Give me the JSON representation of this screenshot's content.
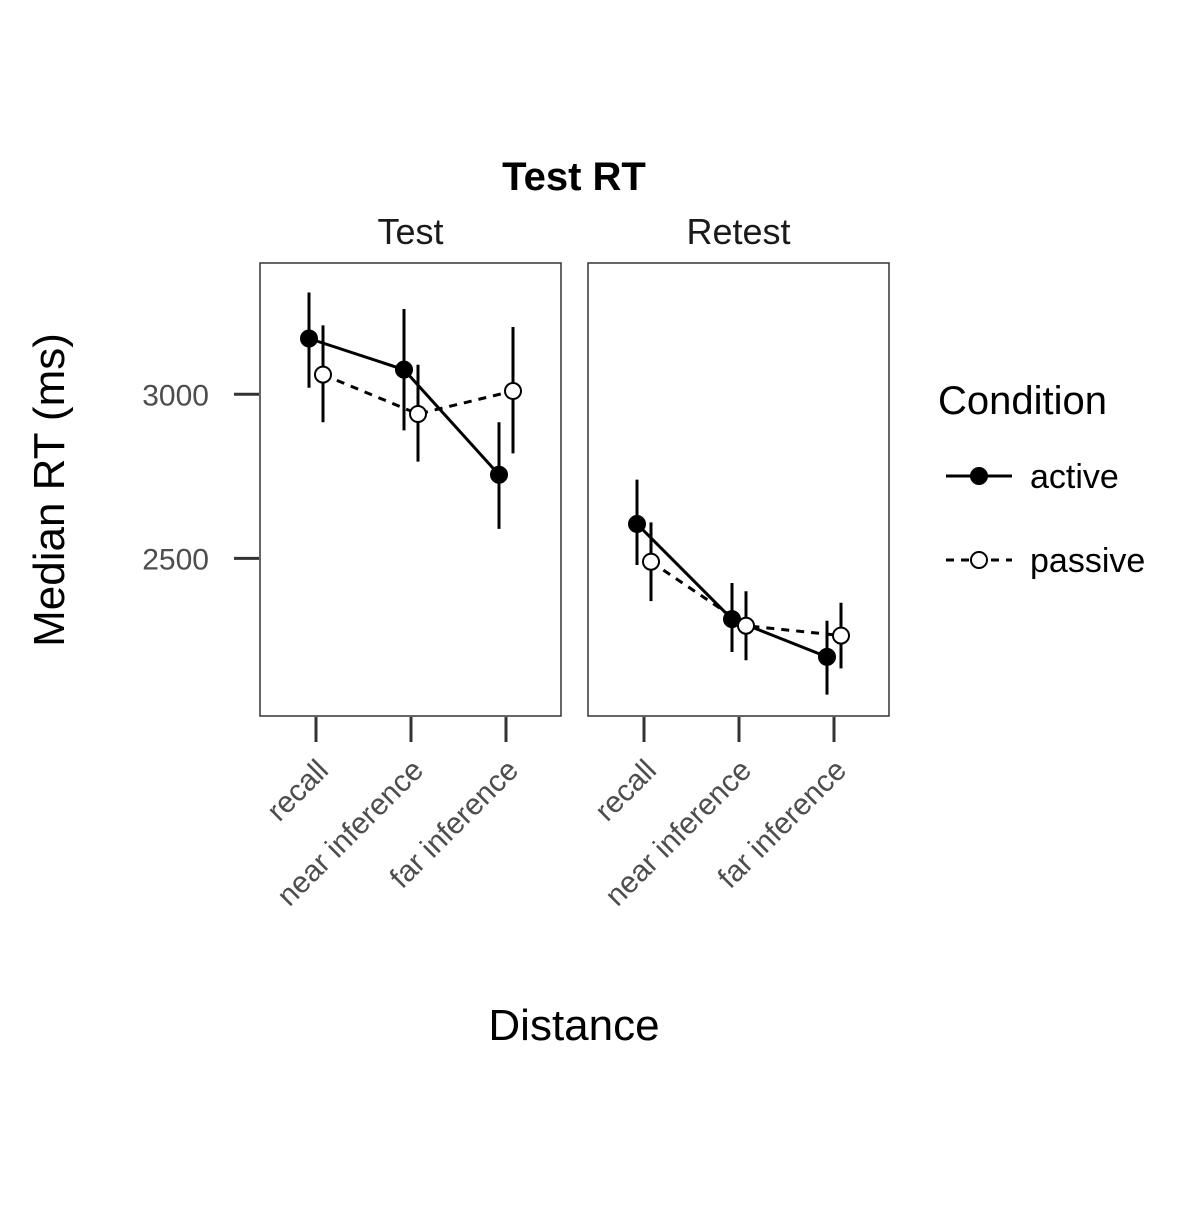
{
  "chart_data": {
    "type": "line",
    "title": "Test RT",
    "xlabel": "Distance",
    "ylabel": "Median RT (ms)",
    "categories": [
      "recall",
      "near inference",
      "far inference"
    ],
    "y_ticks": [
      2500,
      3000
    ],
    "ylim": [
      2020,
      3400
    ],
    "grid": false,
    "legend": {
      "title": "Condition",
      "position": "right",
      "entries": [
        {
          "name": "active",
          "marker": "filled-circle",
          "line": "solid"
        },
        {
          "name": "passive",
          "marker": "open-circle",
          "line": "dashed"
        }
      ]
    },
    "facets": [
      {
        "label": "Test",
        "series": [
          {
            "name": "active",
            "values": [
              3170,
              3075,
              2755
            ],
            "error_low": [
              3020,
              2890,
              2590
            ],
            "error_high": [
              3310,
              3260,
              2915
            ]
          },
          {
            "name": "passive",
            "values": [
              3060,
              2940,
              3010
            ],
            "error_low": [
              2915,
              2795,
              2820
            ],
            "error_high": [
              3210,
              3090,
              3205
            ]
          }
        ]
      },
      {
        "label": "Retest",
        "series": [
          {
            "name": "active",
            "values": [
              2605,
              2315,
              2200
            ],
            "error_low": [
              2480,
              2215,
              2085
            ],
            "error_high": [
              2740,
              2425,
              2310
            ]
          },
          {
            "name": "passive",
            "values": [
              2490,
              2295,
              2265
            ],
            "error_low": [
              2370,
              2190,
              2165
            ],
            "error_high": [
              2610,
              2400,
              2365
            ]
          }
        ]
      }
    ]
  }
}
